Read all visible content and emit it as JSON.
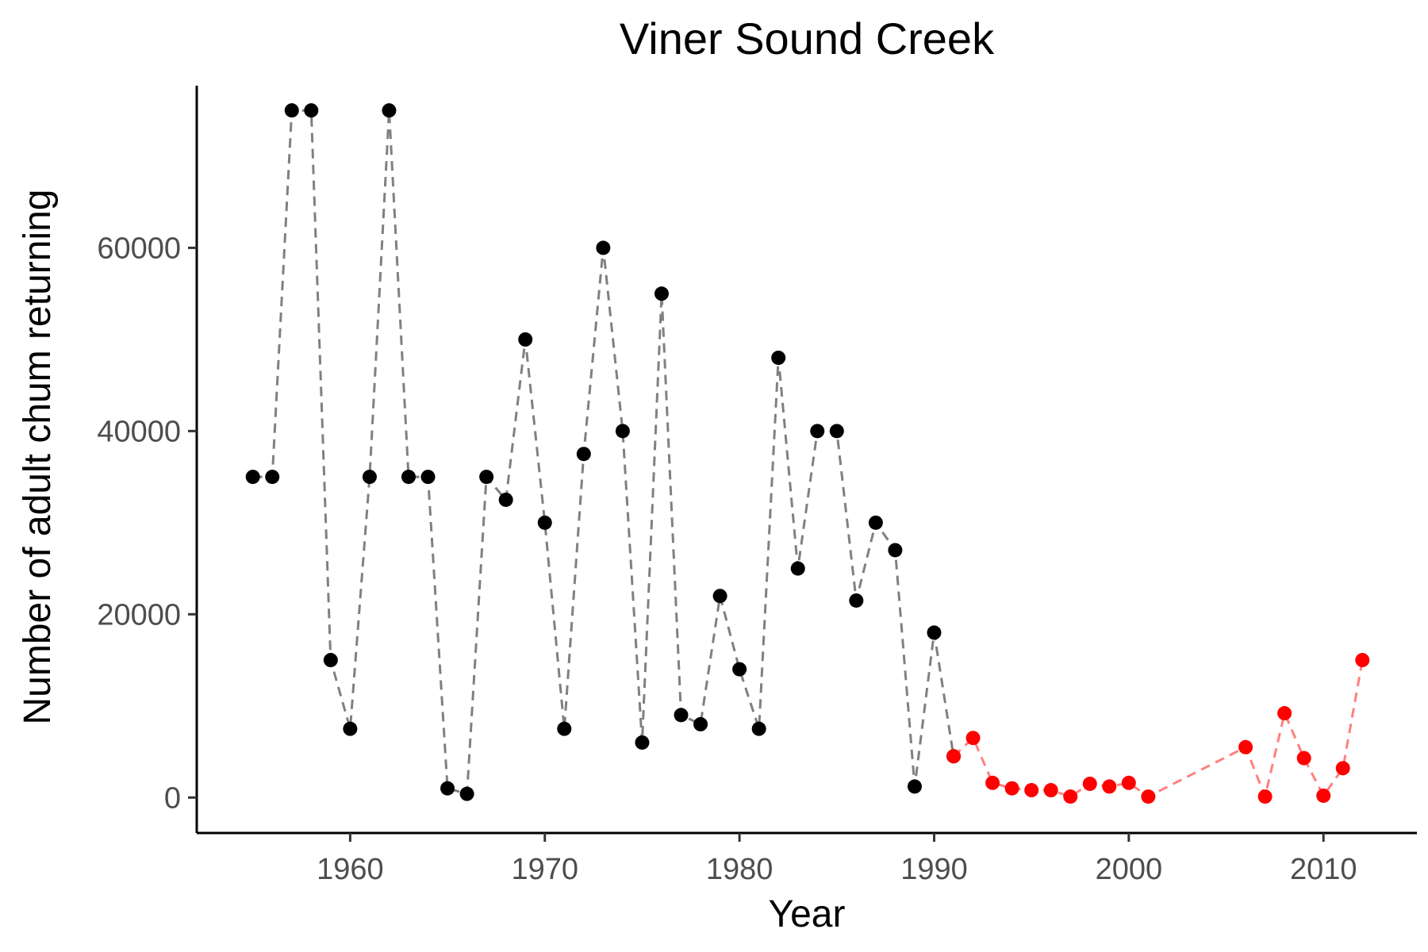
{
  "chart_data": {
    "type": "scatter",
    "title": "Viner Sound Creek",
    "xlabel": "Year",
    "ylabel": "Number of adult chum returning",
    "xlim": [
      1952.2,
      2014.8
    ],
    "ylim": [
      -3700,
      77700
    ],
    "x_ticks": [
      1960,
      1970,
      1980,
      1990,
      2000,
      2010
    ],
    "y_ticks": [
      0,
      20000,
      40000,
      60000
    ],
    "grid": false,
    "legend": "none",
    "line_style": "dashed",
    "series": [
      {
        "color": "#000000",
        "line_color": "#808080",
        "points": [
          [
            1955,
            35000
          ],
          [
            1956,
            35000
          ],
          [
            1957,
            75000
          ],
          [
            1958,
            75000
          ],
          [
            1959,
            15000
          ],
          [
            1960,
            7500
          ],
          [
            1961,
            35000
          ],
          [
            1962,
            75000
          ],
          [
            1963,
            35000
          ],
          [
            1964,
            35000
          ],
          [
            1965,
            1000
          ],
          [
            1966,
            400
          ],
          [
            1967,
            35000
          ],
          [
            1968,
            32500
          ],
          [
            1969,
            50000
          ],
          [
            1970,
            30000
          ],
          [
            1971,
            7500
          ],
          [
            1972,
            37500
          ],
          [
            1973,
            60000
          ],
          [
            1974,
            40000
          ],
          [
            1975,
            6000
          ],
          [
            1976,
            55000
          ],
          [
            1977,
            9000
          ],
          [
            1978,
            8000
          ],
          [
            1979,
            22000
          ],
          [
            1980,
            14000
          ],
          [
            1981,
            7500
          ],
          [
            1982,
            48000
          ],
          [
            1983,
            25000
          ],
          [
            1984,
            40000
          ],
          [
            1985,
            40000
          ],
          [
            1986,
            21500
          ],
          [
            1987,
            30000
          ],
          [
            1988,
            27000
          ],
          [
            1989,
            1200
          ],
          [
            1990,
            18000
          ],
          [
            1991,
            4500
          ]
        ]
      },
      {
        "color": "#ff0000",
        "line_color": "#ff8080",
        "points": [
          [
            1991,
            4500
          ],
          [
            1992,
            6500
          ],
          [
            1993,
            1600
          ],
          [
            1994,
            1000
          ],
          [
            1995,
            800
          ],
          [
            1996,
            800
          ],
          [
            1997,
            100
          ],
          [
            1998,
            1500
          ],
          [
            1999,
            1200
          ],
          [
            2000,
            1600
          ],
          [
            2001,
            100
          ],
          [
            2006,
            5500
          ],
          [
            2007,
            100
          ],
          [
            2008,
            9200
          ],
          [
            2009,
            4300
          ],
          [
            2010,
            200
          ],
          [
            2011,
            3200
          ],
          [
            2012,
            15000
          ]
        ]
      }
    ]
  }
}
